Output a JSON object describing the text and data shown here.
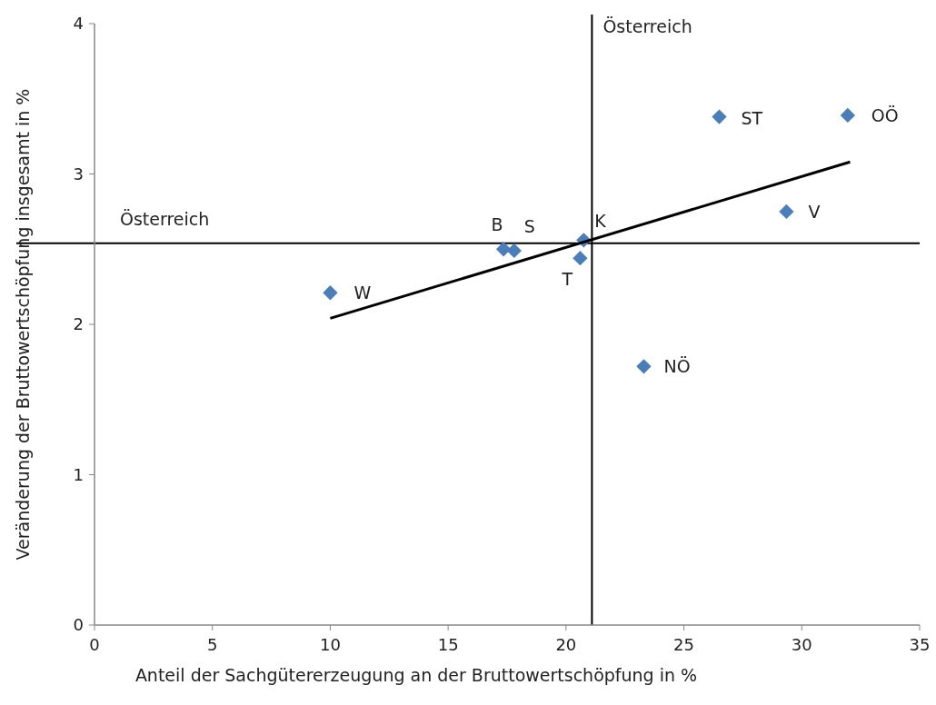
{
  "chart_data": {
    "type": "scatter",
    "xlabel": "Anteil der Sachgütererzeugung an der Bruttowertschöpfung  in %",
    "ylabel": "Veränderung der Bruttowertschöpfung insgesamt in %",
    "xlim": [
      0,
      35
    ],
    "xticks": [
      0,
      5,
      10,
      15,
      20,
      25,
      30,
      35
    ],
    "ylim": [
      0,
      4
    ],
    "yticks": [
      0,
      1,
      2,
      3,
      4
    ],
    "grid": false,
    "series": [
      {
        "marker": "diamond",
        "color": "#4a7ebb",
        "x": [
          10.0,
          17.35,
          17.8,
          20.6,
          20.75,
          23.3,
          26.5,
          29.35,
          31.95
        ],
        "values": [
          2.21,
          2.5,
          2.49,
          2.44,
          2.56,
          1.72,
          3.38,
          2.75,
          3.39
        ]
      },
      {
        "type": "line",
        "color": "#000000",
        "x": [
          10.0,
          32.05
        ],
        "values": [
          2.04,
          3.08
        ]
      }
    ],
    "ref_lines": [
      {
        "axis": "y",
        "value": 2.54,
        "label": "Österreich",
        "color": "#000000"
      },
      {
        "axis": "x",
        "value": 21.1,
        "label": "Österreich",
        "color": "#000000"
      }
    ],
    "annotations": [
      {
        "text": "W",
        "x": 10.0,
        "y": 2.21
      },
      {
        "text": "B",
        "x": 17.35,
        "y": 2.5
      },
      {
        "text": "S",
        "x": 17.8,
        "y": 2.49
      },
      {
        "text": "T",
        "x": 20.6,
        "y": 2.44
      },
      {
        "text": "K",
        "x": 20.75,
        "y": 2.56
      },
      {
        "text": "NÖ",
        "x": 23.3,
        "y": 1.72
      },
      {
        "text": "ST",
        "x": 26.5,
        "y": 3.38
      },
      {
        "text": "V",
        "x": 29.35,
        "y": 2.75
      },
      {
        "text": "OÖ",
        "x": 31.95,
        "y": 3.39
      }
    ]
  }
}
